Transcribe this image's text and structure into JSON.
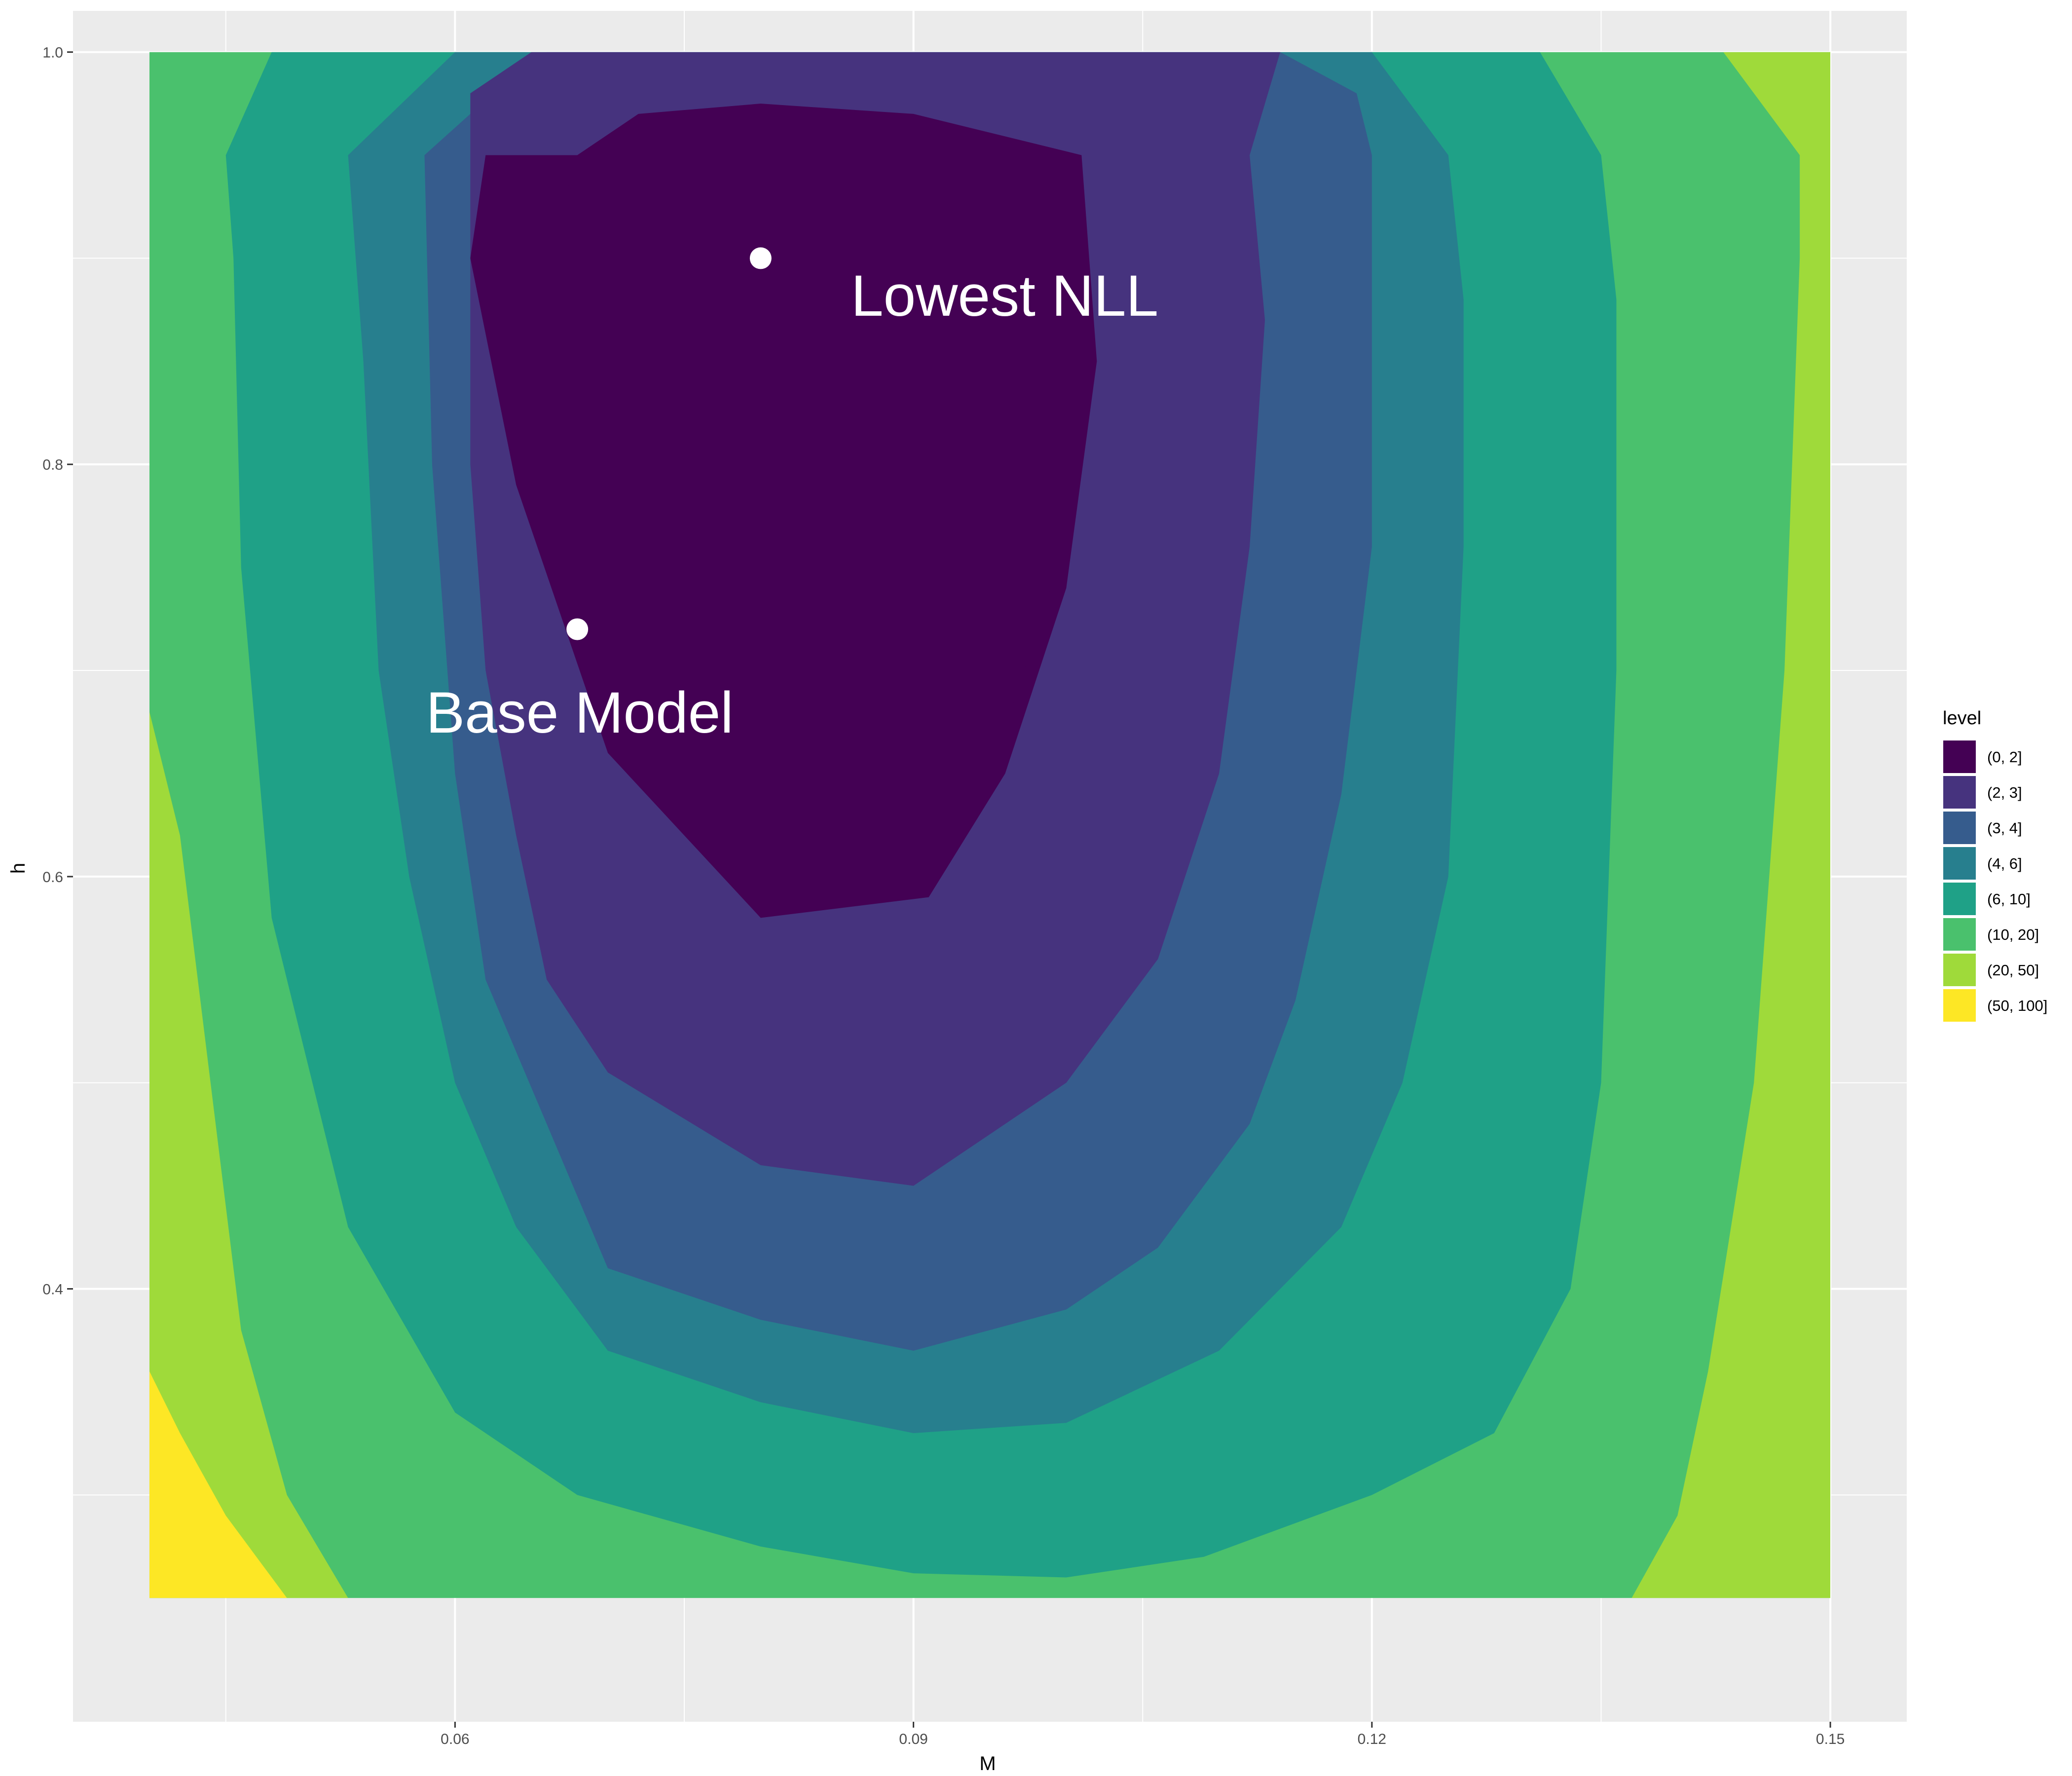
{
  "chart_data": {
    "type": "contour",
    "title": "",
    "xlabel": "M",
    "ylabel": "h",
    "xlim": [
      0.035,
      0.155
    ],
    "ylim": [
      0.19,
      1.02
    ],
    "x_ticks": [
      "0.06",
      "0.09",
      "0.12",
      "0.15"
    ],
    "y_ticks": [
      "0.4",
      "0.6",
      "0.8",
      "1.0"
    ],
    "x_tick_values": [
      0.06,
      0.09,
      0.12,
      0.15
    ],
    "y_tick_values": [
      0.4,
      0.6,
      0.8,
      1.0
    ],
    "data_extent": {
      "x": [
        0.04,
        0.15
      ],
      "y": [
        0.25,
        1.0
      ]
    },
    "grid": true,
    "legend": {
      "title": "level",
      "placement": "right",
      "entries": [
        {
          "label": "(0, 2]",
          "color": "#440154"
        },
        {
          "label": "(2, 3]",
          "color": "#46337E"
        },
        {
          "label": "(3, 4]",
          "color": "#365C8D"
        },
        {
          "label": "(4, 6]",
          "color": "#277F8E"
        },
        {
          "label": "(6, 10]",
          "color": "#1FA187"
        },
        {
          "label": "(10, 20]",
          "color": "#4AC16D"
        },
        {
          "label": "(20, 50]",
          "color": "#9FDA3A"
        },
        {
          "label": "(50, 100]",
          "color": "#FDE725"
        }
      ]
    },
    "contour_bands": [
      {
        "level": "(6, 10]",
        "points": [
          [
            0.045,
            0.95
          ],
          [
            0.048,
            1.0
          ],
          [
            0.131,
            1.0
          ],
          [
            0.135,
            0.95
          ],
          [
            0.136,
            0.88
          ],
          [
            0.136,
            0.7
          ],
          [
            0.135,
            0.5
          ],
          [
            0.133,
            0.4
          ],
          [
            0.128,
            0.33
          ],
          [
            0.12,
            0.3
          ],
          [
            0.109,
            0.27
          ],
          [
            0.1,
            0.26
          ],
          [
            0.09,
            0.262
          ],
          [
            0.08,
            0.275
          ],
          [
            0.068,
            0.3
          ],
          [
            0.06,
            0.34
          ],
          [
            0.053,
            0.43
          ],
          [
            0.048,
            0.58
          ],
          [
            0.046,
            0.75
          ],
          [
            0.0455,
            0.9
          ]
        ]
      },
      {
        "level": "(4, 6]",
        "points": [
          [
            0.053,
            0.95
          ],
          [
            0.06,
            1.0
          ],
          [
            0.12,
            1.0
          ],
          [
            0.125,
            0.95
          ],
          [
            0.126,
            0.88
          ],
          [
            0.126,
            0.76
          ],
          [
            0.125,
            0.6
          ],
          [
            0.122,
            0.5
          ],
          [
            0.118,
            0.43
          ],
          [
            0.11,
            0.37
          ],
          [
            0.1,
            0.335
          ],
          [
            0.09,
            0.33
          ],
          [
            0.08,
            0.345
          ],
          [
            0.07,
            0.37
          ],
          [
            0.064,
            0.43
          ],
          [
            0.06,
            0.5
          ],
          [
            0.057,
            0.6
          ],
          [
            0.055,
            0.7
          ],
          [
            0.054,
            0.85
          ]
        ]
      },
      {
        "level": "(3, 4]",
        "points": [
          [
            0.058,
            0.95
          ],
          [
            0.061,
            0.97
          ],
          [
            0.066,
            1.0
          ],
          [
            0.114,
            1.0
          ],
          [
            0.119,
            0.98
          ],
          [
            0.12,
            0.95
          ],
          [
            0.12,
            0.87
          ],
          [
            0.12,
            0.76
          ],
          [
            0.118,
            0.64
          ],
          [
            0.115,
            0.54
          ],
          [
            0.112,
            0.48
          ],
          [
            0.106,
            0.42
          ],
          [
            0.1,
            0.39
          ],
          [
            0.09,
            0.37
          ],
          [
            0.08,
            0.385
          ],
          [
            0.07,
            0.41
          ],
          [
            0.066,
            0.48
          ],
          [
            0.062,
            0.55
          ],
          [
            0.06,
            0.65
          ],
          [
            0.0585,
            0.8
          ]
        ]
      },
      {
        "level": "(2, 3]",
        "points": [
          [
            0.061,
            0.95
          ],
          [
            0.061,
            0.98
          ],
          [
            0.065,
            1.0
          ],
          [
            0.114,
            1.0
          ],
          [
            0.112,
            0.95
          ],
          [
            0.113,
            0.87
          ],
          [
            0.112,
            0.76
          ],
          [
            0.11,
            0.65
          ],
          [
            0.106,
            0.56
          ],
          [
            0.1,
            0.5
          ],
          [
            0.09,
            0.45
          ],
          [
            0.08,
            0.46
          ],
          [
            0.07,
            0.505
          ],
          [
            0.066,
            0.55
          ],
          [
            0.064,
            0.62
          ],
          [
            0.062,
            0.7
          ],
          [
            0.061,
            0.8
          ]
        ]
      },
      {
        "level": "(0, 2]",
        "points": [
          [
            0.068,
            0.95
          ],
          [
            0.072,
            0.97
          ],
          [
            0.08,
            0.975
          ],
          [
            0.09,
            0.97
          ],
          [
            0.101,
            0.95
          ],
          [
            0.102,
            0.85
          ],
          [
            0.1,
            0.74
          ],
          [
            0.096,
            0.65
          ],
          [
            0.091,
            0.59
          ],
          [
            0.08,
            0.58
          ],
          [
            0.07,
            0.66
          ],
          [
            0.064,
            0.79
          ],
          [
            0.061,
            0.9
          ],
          [
            0.062,
            0.95
          ]
        ]
      },
      {
        "level": "(0, 2]",
        "points": [
          [
            0.072,
            0.95
          ],
          [
            0.076,
            0.965
          ],
          [
            0.08,
            0.97
          ],
          [
            0.09,
            0.965
          ],
          [
            0.099,
            0.95
          ],
          [
            0.101,
            0.85
          ],
          [
            0.099,
            0.74
          ],
          [
            0.095,
            0.65
          ],
          [
            0.09,
            0.595
          ],
          [
            0.08,
            0.585
          ],
          [
            0.071,
            0.66
          ],
          [
            0.067,
            0.79
          ],
          [
            0.066,
            0.9
          ],
          [
            0.068,
            0.95
          ]
        ]
      }
    ],
    "points": [
      {
        "label": "Lowest NLL",
        "x": 0.08,
        "y": 0.9
      },
      {
        "label": "Base Model",
        "x": 0.068,
        "y": 0.72
      }
    ]
  }
}
